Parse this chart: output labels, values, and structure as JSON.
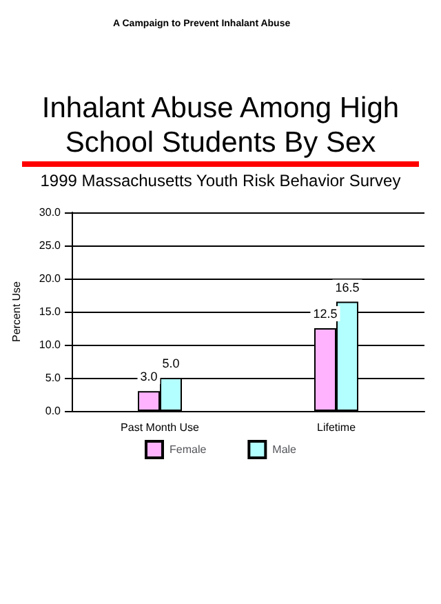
{
  "chart_data": {
    "type": "bar",
    "title": "Inhalant Abuse Among High School Students By Sex",
    "subtitle": "1999 Massachusetts Youth Risk Behavior Survey",
    "ylabel": "Percent Use",
    "annotations": [
      "A Campaign to Prevent Inhalant Abuse"
    ],
    "categories": [
      "Past Month Use",
      "Lifetime"
    ],
    "series": [
      {
        "name": "Female",
        "color": "#ffb3ff",
        "values": [
          3.0,
          12.5
        ],
        "value_labels": [
          "3.0",
          "12.5"
        ]
      },
      {
        "name": "Male",
        "color": "#b3ffff",
        "values": [
          5.0,
          16.5
        ],
        "value_labels": [
          "5.0",
          "16.5"
        ]
      }
    ],
    "ylim": [
      0,
      30
    ],
    "yticks": [
      {
        "value": 0,
        "label": "0.0"
      },
      {
        "value": 5,
        "label": "5.0"
      },
      {
        "value": 10,
        "label": "10.0"
      },
      {
        "value": 15,
        "label": "15.0"
      },
      {
        "value": 20,
        "label": "20.0"
      },
      {
        "value": 25,
        "label": "25.0"
      },
      {
        "value": 30,
        "label": "30.0"
      }
    ],
    "grid": "y",
    "legend": "bottom"
  }
}
